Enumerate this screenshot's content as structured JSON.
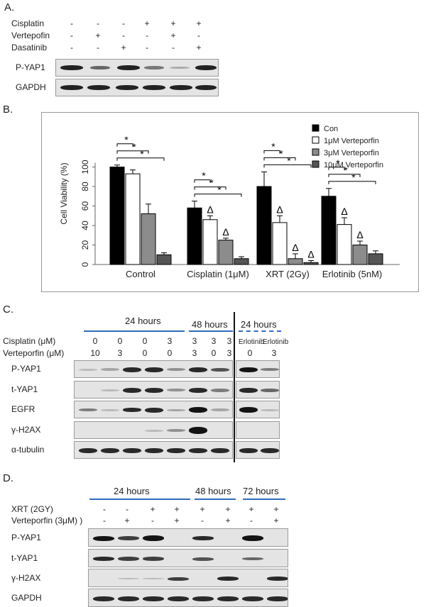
{
  "panel_a": {
    "letter": "A.",
    "treatments": [
      {
        "label": "Cisplatin",
        "signs": [
          "-",
          "-",
          "-",
          "+",
          "+",
          "+"
        ]
      },
      {
        "label": "Vertepofin",
        "signs": [
          "-",
          "+",
          "-",
          "-",
          "+",
          "-"
        ]
      },
      {
        "label": "Dasatinib",
        "signs": [
          "-",
          "-",
          "+",
          "-",
          "-",
          "+"
        ]
      }
    ],
    "blots": [
      "P-YAP1",
      "GAPDH"
    ]
  },
  "panel_b": {
    "letter": "B."
  },
  "chart_data": {
    "type": "bar",
    "categories": [
      "Control",
      "Cisplatin (1μM)",
      "XRT (2Gy)",
      "Erlotinib (5nM)"
    ],
    "series": [
      {
        "name": "Con",
        "color": "#000000",
        "values": [
          100,
          58,
          80,
          70
        ],
        "errors": [
          2,
          7,
          15,
          8
        ]
      },
      {
        "name": "1μM Verteporfin",
        "color": "#ffffff",
        "values": [
          93,
          46,
          43,
          41
        ],
        "errors": [
          4,
          4,
          7,
          7
        ]
      },
      {
        "name": "3μM Verteporfin",
        "color": "#8c8c8c",
        "values": [
          52,
          25,
          6,
          20
        ],
        "errors": [
          10,
          2,
          5,
          4
        ]
      },
      {
        "name": "10μM Verteporfin",
        "color": "#555555",
        "values": [
          10,
          6,
          2,
          11
        ],
        "errors": [
          2,
          2,
          2,
          3
        ]
      }
    ],
    "ylabel": "Cell Viability (%)",
    "ylim": [
      0,
      120
    ],
    "yticks": [
      0,
      20,
      40,
      60,
      80,
      100
    ],
    "legend_position": "top-right",
    "star": "*",
    "delta": "Δ"
  },
  "panel_c": {
    "letter": "C.",
    "hours_24": "24 hours",
    "hours_48": "48 hours",
    "hours_24b": "24 hours",
    "row_labels": [
      "Cisplatin (μM)",
      "Verteporfin (μM)"
    ],
    "cisplatin": [
      "0",
      "0",
      "0",
      "3",
      "3",
      "3",
      "3"
    ],
    "verteporfin": [
      "10",
      "3",
      "0",
      "0",
      "3",
      "0",
      "3"
    ],
    "erlotinib": [
      "Erlotinib",
      "Erlotinib"
    ],
    "erl_vp": [
      "0",
      "3"
    ],
    "blots": [
      "P-YAP1",
      "t-YAP1",
      "EGFR",
      "γ-H2AX",
      "α-tubulin"
    ]
  },
  "panel_d": {
    "letter": "D.",
    "hours_24": "24 hours",
    "hours_48": "48 hours",
    "hours_72": "72 hours",
    "row_labels": [
      "XRT (2GY)",
      "Verteporfin (3μM) )"
    ],
    "xrt": [
      "-",
      "-",
      "+",
      "+",
      "+",
      "+",
      "+",
      "+"
    ],
    "vp": [
      "-",
      "+",
      "-",
      "+",
      "-",
      "+",
      "-",
      "+"
    ],
    "blots": [
      "P-YAP1",
      "t-YAP1",
      "γ-H2AX",
      "GAPDH"
    ]
  }
}
